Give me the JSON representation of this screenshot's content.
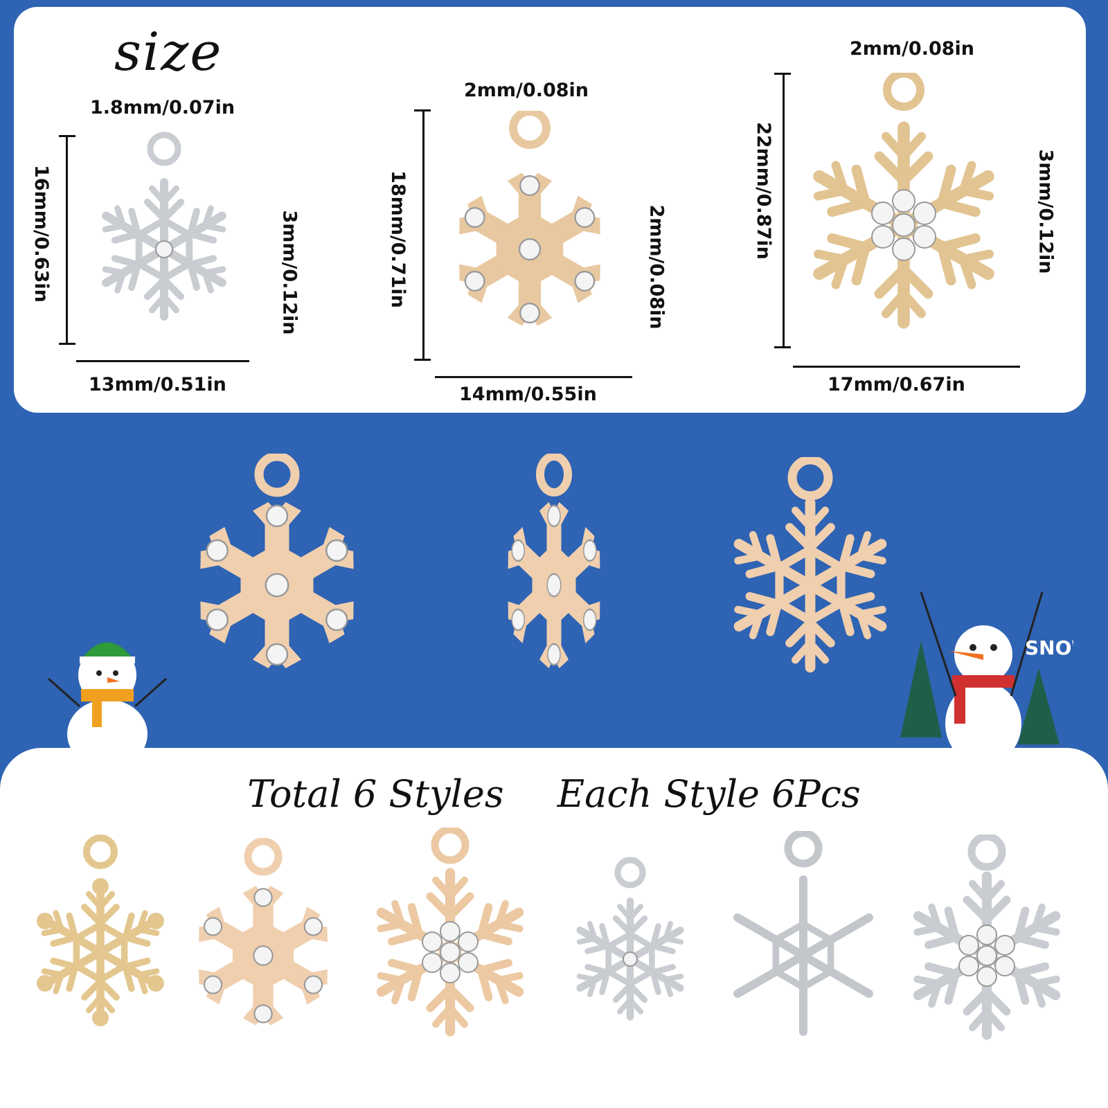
{
  "size_panel": {
    "title": "size",
    "charm1": {
      "ring": "1.8mm/0.07in",
      "height": "16mm/0.63in",
      "thickness": "3mm/0.12in",
      "width": "13mm/0.51in"
    },
    "charm2": {
      "ring": "2mm/0.08in",
      "height": "18mm/0.71in",
      "thickness": "2mm/0.08in",
      "width": "14mm/0.55in"
    },
    "charm3": {
      "ring": "2mm/0.08in",
      "height": "22mm/0.87in",
      "thickness": "3mm/0.12in",
      "width": "17mm/0.67in"
    }
  },
  "bottom_panel": {
    "total_styles": "Total 6 Styles",
    "each_style": "Each Style 6Pcs"
  },
  "decor": {
    "snow_badge": "SNOW"
  },
  "colors": {
    "background": "#2f63b3",
    "gold": "#e8c8a0",
    "silver": "#c9ccd1"
  }
}
